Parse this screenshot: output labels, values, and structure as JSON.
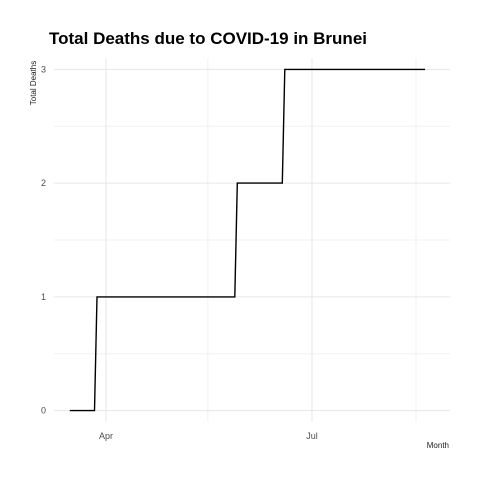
{
  "chart_data": {
    "type": "line",
    "step": true,
    "title": "Total Deaths due to COVID-19 in Brunei",
    "xlabel": "Month",
    "ylabel": "Total Deaths",
    "x_axis": {
      "type": "date",
      "range": [
        "2020-03-09",
        "2020-08-31"
      ],
      "ticks": [
        {
          "date": "2020-04-01",
          "label": "Apr"
        },
        {
          "date": "2020-07-01",
          "label": "Jul"
        }
      ],
      "minor_gridlines": [
        "2020-05-16",
        "2020-08-16"
      ]
    },
    "y_axis": {
      "range": [
        -0.1,
        3.1
      ],
      "ticks": [
        0,
        1,
        2,
        3
      ],
      "minor_gridlines": [
        0.5,
        1.5,
        2.5
      ]
    },
    "grid": true,
    "legend": "none",
    "line_color": "#000000",
    "series": [
      {
        "points": [
          {
            "x": "2020-03-16",
            "y": 0
          },
          {
            "x": "2020-03-28",
            "y": 1
          },
          {
            "x": "2020-05-29",
            "y": 2
          },
          {
            "x": "2020-06-19",
            "y": 3
          },
          {
            "x": "2020-08-20",
            "y": 3
          }
        ]
      }
    ]
  }
}
